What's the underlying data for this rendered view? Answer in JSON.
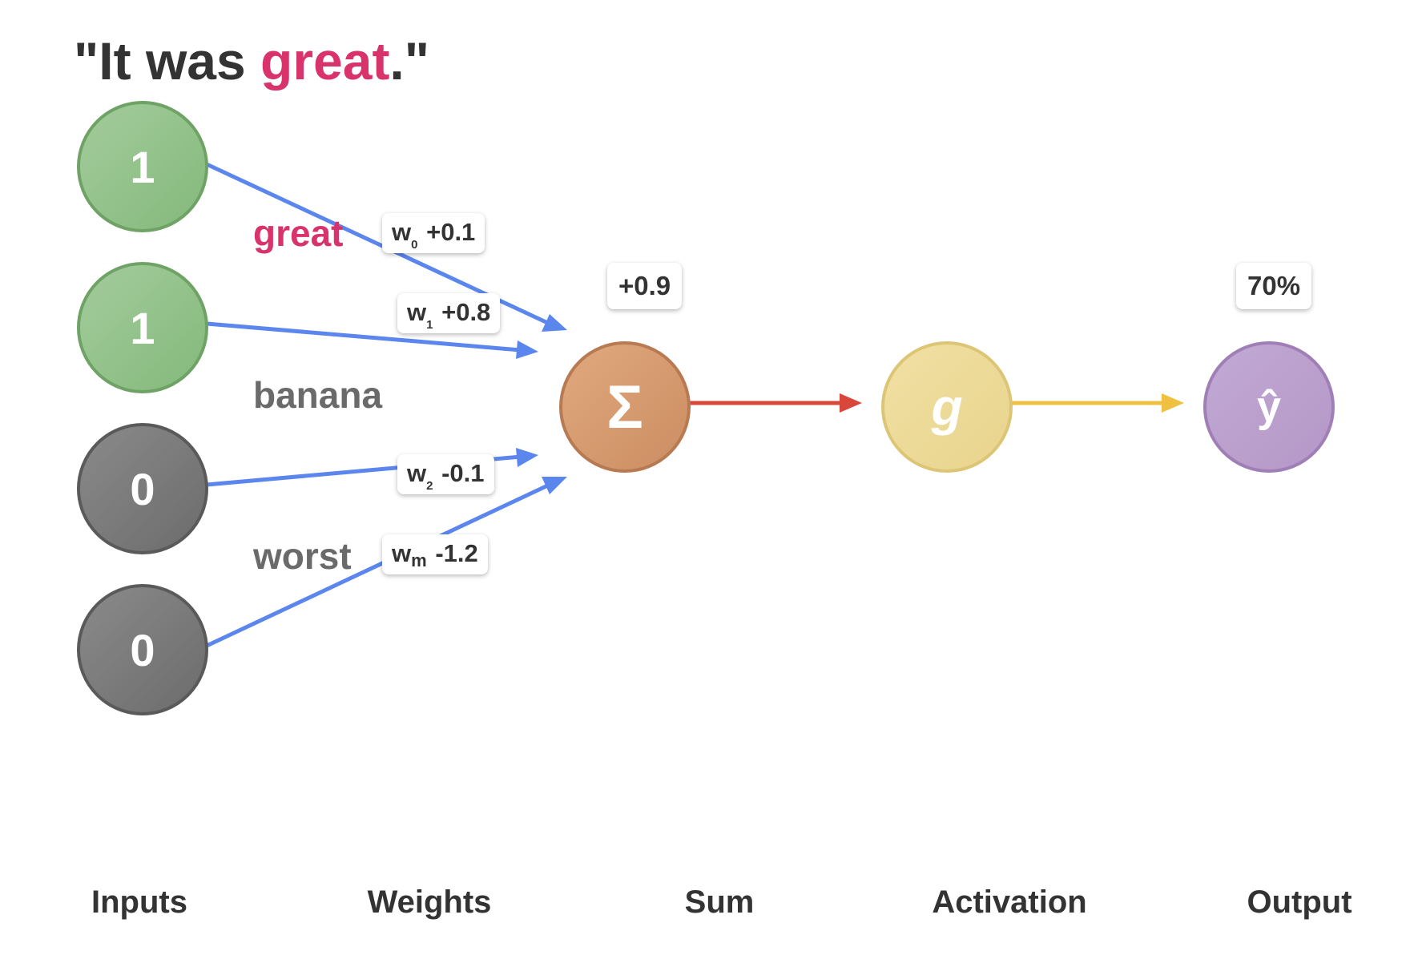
{
  "title": {
    "quote_open": "\"It was ",
    "highlight": "great",
    "quote_close": ".\""
  },
  "inputs": [
    {
      "value": "1",
      "color": "green"
    },
    {
      "value": "1",
      "color": "green"
    },
    {
      "value": "0",
      "color": "gray"
    },
    {
      "value": "0",
      "color": "gray"
    }
  ],
  "words": {
    "great": "great",
    "banana": "banana",
    "worst": "worst"
  },
  "weights": [
    {
      "symbol": "w",
      "index": "0",
      "value": "+0.1"
    },
    {
      "symbol": "w",
      "index": "1",
      "value": "+0.8"
    },
    {
      "symbol": "w",
      "index": "2",
      "value": "-0.1"
    },
    {
      "symbol": "w",
      "index": "m",
      "value": "-1.2"
    }
  ],
  "sum": {
    "symbol": "Σ",
    "value": "+0.9"
  },
  "activation": {
    "symbol": "g"
  },
  "output": {
    "symbol": "ŷ",
    "value": "70%"
  },
  "stages": {
    "inputs": "Inputs",
    "weights": "Weights",
    "sum": "Sum",
    "activation": "Activation",
    "output": "Output"
  },
  "colors": {
    "positive_word": "#d8336a",
    "weight_arrow": "#5b86ee",
    "sum_arrow": "#d9473a",
    "activation_arrow": "#f0c040"
  }
}
